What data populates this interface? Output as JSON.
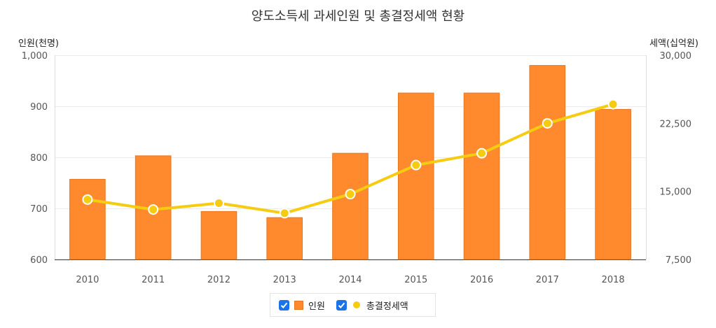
{
  "chart_data": {
    "type": "bar+line",
    "title": "양도소득세 과세인원 및 총결정세액 현황",
    "categories": [
      "2010",
      "2011",
      "2012",
      "2013",
      "2014",
      "2015",
      "2016",
      "2017",
      "2018"
    ],
    "left_axis": {
      "label": "인원(천명)",
      "ylim": [
        600,
        1000
      ],
      "ticks": [
        "600",
        "700",
        "800",
        "900",
        "1,000"
      ],
      "tick_values": [
        600,
        700,
        800,
        900,
        1000
      ]
    },
    "right_axis": {
      "label": "세액(십억원)",
      "ylim": [
        7500,
        30000
      ],
      "ticks": [
        "7,500",
        "15,000",
        "22,500",
        "30,000"
      ],
      "tick_values": [
        7500,
        15000,
        22500,
        30000
      ]
    },
    "series": [
      {
        "name": "인원",
        "type": "bar",
        "axis": "left",
        "color": "#ff8a2e",
        "values": [
          757,
          803,
          694,
          682,
          808,
          926,
          926,
          980,
          894
        ]
      },
      {
        "name": "총결정세액",
        "type": "line",
        "axis": "right",
        "color": "#f6cc12",
        "values": [
          14100,
          13000,
          13700,
          12600,
          14700,
          17900,
          19200,
          22500,
          24600
        ]
      }
    ],
    "grid": true,
    "legend_position": "bottom"
  }
}
